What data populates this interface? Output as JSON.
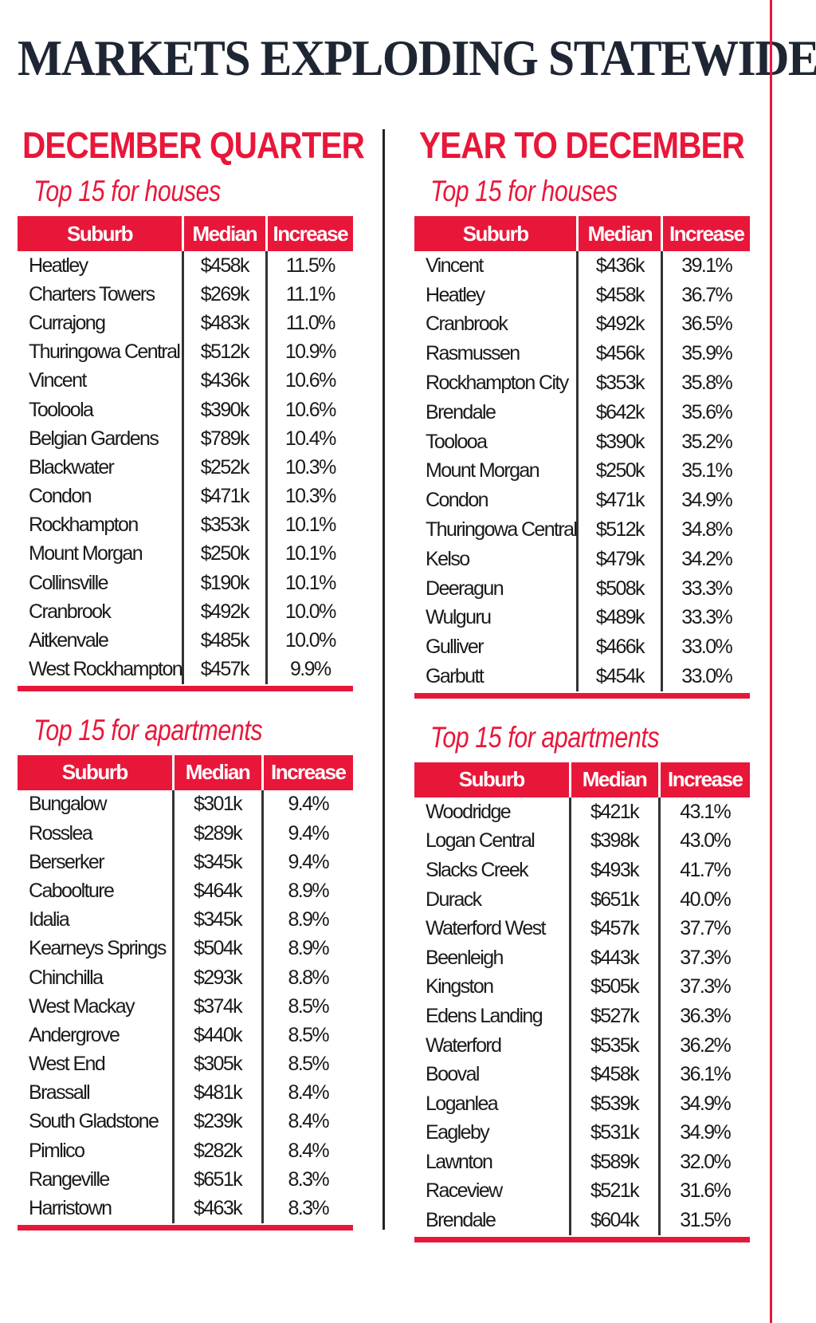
{
  "title": "MARKETS EXPLODING STATEWIDE",
  "columns": [
    "Suburb",
    "Median",
    "Increase"
  ],
  "accent_color": "#e8173a",
  "sections": [
    {
      "heading": "DECEMBER QUARTER",
      "houses": {
        "label": "Top 15 for houses",
        "rows": [
          [
            "Heatley",
            "$458k",
            "11.5%"
          ],
          [
            "Charters Towers",
            "$269k",
            "11.1%"
          ],
          [
            "Currajong",
            "$483k",
            "11.0%"
          ],
          [
            "Thuringowa Central",
            "$512k",
            "10.9%"
          ],
          [
            "Vincent",
            "$436k",
            "10.6%"
          ],
          [
            "Tooloola",
            "$390k",
            "10.6%"
          ],
          [
            "Belgian Gardens",
            "$789k",
            "10.4%"
          ],
          [
            "Blackwater",
            "$252k",
            "10.3%"
          ],
          [
            "Condon",
            "$471k",
            "10.3%"
          ],
          [
            "Rockhampton",
            "$353k",
            "10.1%"
          ],
          [
            "Mount Morgan",
            "$250k",
            "10.1%"
          ],
          [
            "Collinsville",
            "$190k",
            "10.1%"
          ],
          [
            "Cranbrook",
            "$492k",
            "10.0%"
          ],
          [
            "Aitkenvale",
            "$485k",
            "10.0%"
          ],
          [
            "West Rockhampton",
            "$457k",
            "9.9%"
          ]
        ]
      },
      "apartments": {
        "label": "Top 15 for apartments",
        "rows": [
          [
            "Bungalow",
            "$301k",
            "9.4%"
          ],
          [
            "Rosslea",
            "$289k",
            "9.4%"
          ],
          [
            "Berserker",
            "$345k",
            "9.4%"
          ],
          [
            "Caboolture",
            "$464k",
            "8.9%"
          ],
          [
            "Idalia",
            "$345k",
            "8.9%"
          ],
          [
            "Kearneys Springs",
            "$504k",
            "8.9%"
          ],
          [
            "Chinchilla",
            "$293k",
            "8.8%"
          ],
          [
            "West Mackay",
            "$374k",
            "8.5%"
          ],
          [
            "Andergrove",
            "$440k",
            "8.5%"
          ],
          [
            "West End",
            "$305k",
            "8.5%"
          ],
          [
            "Brassall",
            "$481k",
            "8.4%"
          ],
          [
            "South Gladstone",
            "$239k",
            "8.4%"
          ],
          [
            "Pimlico",
            "$282k",
            "8.4%"
          ],
          [
            "Rangeville",
            "$651k",
            "8.3%"
          ],
          [
            "Harristown",
            "$463k",
            "8.3%"
          ]
        ]
      }
    },
    {
      "heading": "YEAR TO DECEMBER",
      "houses": {
        "label": "Top 15 for houses",
        "rows": [
          [
            "Vincent",
            "$436k",
            "39.1%"
          ],
          [
            "Heatley",
            "$458k",
            "36.7%"
          ],
          [
            "Cranbrook",
            "$492k",
            "36.5%"
          ],
          [
            "Rasmussen",
            "$456k",
            "35.9%"
          ],
          [
            "Rockhampton City",
            "$353k",
            "35.8%"
          ],
          [
            "Brendale",
            "$642k",
            "35.6%"
          ],
          [
            "Toolooa",
            "$390k",
            "35.2%"
          ],
          [
            "Mount Morgan",
            "$250k",
            "35.1%"
          ],
          [
            "Condon",
            "$471k",
            "34.9%"
          ],
          [
            "Thuringowa Central",
            "$512k",
            "34.8%"
          ],
          [
            "Kelso",
            "$479k",
            "34.2%"
          ],
          [
            "Deeragun",
            "$508k",
            "33.3%"
          ],
          [
            "Wulguru",
            "$489k",
            "33.3%"
          ],
          [
            "Gulliver",
            "$466k",
            "33.0%"
          ],
          [
            "Garbutt",
            "$454k",
            "33.0%"
          ]
        ]
      },
      "apartments": {
        "label": "Top 15 for apartments",
        "rows": [
          [
            "Woodridge",
            "$421k",
            "43.1%"
          ],
          [
            "Logan Central",
            "$398k",
            "43.0%"
          ],
          [
            "Slacks Creek",
            "$493k",
            "41.7%"
          ],
          [
            "Durack",
            "$651k",
            "40.0%"
          ],
          [
            "Waterford West",
            "$457k",
            "37.7%"
          ],
          [
            "Beenleigh",
            "$443k",
            "37.3%"
          ],
          [
            "Kingston",
            "$505k",
            "37.3%"
          ],
          [
            "Edens Landing",
            "$527k",
            "36.3%"
          ],
          [
            "Waterford",
            "$535k",
            "36.2%"
          ],
          [
            "Booval",
            "$458k",
            "36.1%"
          ],
          [
            "Loganlea",
            "$539k",
            "34.9%"
          ],
          [
            "Eagleby",
            "$531k",
            "34.9%"
          ],
          [
            "Lawnton",
            "$589k",
            "32.0%"
          ],
          [
            "Raceview",
            "$521k",
            "31.6%"
          ],
          [
            "Brendale",
            "$604k",
            "31.5%"
          ]
        ]
      }
    }
  ]
}
